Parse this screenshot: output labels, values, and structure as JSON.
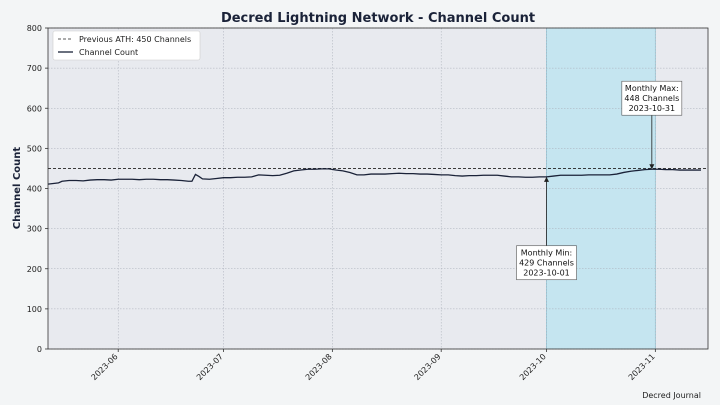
{
  "chart_data": {
    "type": "line",
    "title": "Decred Lightning Network - Channel Count",
    "ylabel": "Channel Count",
    "xlabel": "",
    "ylim": [
      0,
      800
    ],
    "yticks": [
      "0",
      "100",
      "200",
      "300",
      "400",
      "500",
      "600",
      "700",
      "800"
    ],
    "xlim": [
      "2023-05-12",
      "2023-11-16"
    ],
    "xticks": [
      {
        "date": "2023-06-01",
        "label": "2023-06"
      },
      {
        "date": "2023-07-01",
        "label": "2023-07"
      },
      {
        "date": "2023-08-01",
        "label": "2023-08"
      },
      {
        "date": "2023-09-01",
        "label": "2023-09"
      },
      {
        "date": "2023-10-01",
        "label": "2023-10"
      },
      {
        "date": "2023-11-01",
        "label": "2023-11"
      }
    ],
    "grid": true,
    "legend_position": "top-left",
    "highlight_range": [
      "2023-10-01",
      "2023-11-01"
    ],
    "reference_line": {
      "value": 450,
      "label": "Previous ATH: 450 Channels"
    },
    "series": [
      {
        "name": "Channel Count",
        "color": "#1a2238",
        "points": [
          [
            "2023-05-12",
            411
          ],
          [
            "2023-05-15",
            414
          ],
          [
            "2023-05-16",
            418
          ],
          [
            "2023-05-18",
            420
          ],
          [
            "2023-05-20",
            420
          ],
          [
            "2023-05-22",
            419
          ],
          [
            "2023-05-24",
            421
          ],
          [
            "2023-05-26",
            422
          ],
          [
            "2023-05-28",
            422
          ],
          [
            "2023-05-30",
            421
          ],
          [
            "2023-06-01",
            423
          ],
          [
            "2023-06-03",
            423
          ],
          [
            "2023-06-05",
            423
          ],
          [
            "2023-06-07",
            422
          ],
          [
            "2023-06-09",
            423
          ],
          [
            "2023-06-11",
            423
          ],
          [
            "2023-06-13",
            422
          ],
          [
            "2023-06-15",
            422
          ],
          [
            "2023-06-17",
            421
          ],
          [
            "2023-06-19",
            420
          ],
          [
            "2023-06-20",
            419
          ],
          [
            "2023-06-21",
            418
          ],
          [
            "2023-06-22",
            418
          ],
          [
            "2023-06-23",
            435
          ],
          [
            "2023-06-24",
            430
          ],
          [
            "2023-06-25",
            424
          ],
          [
            "2023-06-27",
            423
          ],
          [
            "2023-06-29",
            425
          ],
          [
            "2023-07-01",
            427
          ],
          [
            "2023-07-03",
            427
          ],
          [
            "2023-07-05",
            428
          ],
          [
            "2023-07-07",
            428
          ],
          [
            "2023-07-09",
            429
          ],
          [
            "2023-07-11",
            434
          ],
          [
            "2023-07-13",
            433
          ],
          [
            "2023-07-15",
            432
          ],
          [
            "2023-07-17",
            433
          ],
          [
            "2023-07-19",
            438
          ],
          [
            "2023-07-21",
            444
          ],
          [
            "2023-07-23",
            446
          ],
          [
            "2023-07-25",
            448
          ],
          [
            "2023-07-27",
            448
          ],
          [
            "2023-07-29",
            449
          ],
          [
            "2023-07-31",
            449
          ],
          [
            "2023-08-02",
            446
          ],
          [
            "2023-08-04",
            444
          ],
          [
            "2023-08-06",
            440
          ],
          [
            "2023-08-08",
            434
          ],
          [
            "2023-08-10",
            434
          ],
          [
            "2023-08-12",
            436
          ],
          [
            "2023-08-14",
            436
          ],
          [
            "2023-08-16",
            436
          ],
          [
            "2023-08-18",
            437
          ],
          [
            "2023-08-20",
            438
          ],
          [
            "2023-08-22",
            437
          ],
          [
            "2023-08-24",
            437
          ],
          [
            "2023-08-26",
            436
          ],
          [
            "2023-08-28",
            436
          ],
          [
            "2023-08-30",
            435
          ],
          [
            "2023-09-01",
            434
          ],
          [
            "2023-09-03",
            434
          ],
          [
            "2023-09-05",
            432
          ],
          [
            "2023-09-07",
            431
          ],
          [
            "2023-09-09",
            432
          ],
          [
            "2023-09-11",
            432
          ],
          [
            "2023-09-13",
            433
          ],
          [
            "2023-09-15",
            433
          ],
          [
            "2023-09-17",
            433
          ],
          [
            "2023-09-19",
            431
          ],
          [
            "2023-09-21",
            429
          ],
          [
            "2023-09-23",
            429
          ],
          [
            "2023-09-25",
            428
          ],
          [
            "2023-09-27",
            428
          ],
          [
            "2023-09-29",
            429
          ],
          [
            "2023-10-01",
            429
          ],
          [
            "2023-10-03",
            431
          ],
          [
            "2023-10-05",
            433
          ],
          [
            "2023-10-07",
            433
          ],
          [
            "2023-10-09",
            433
          ],
          [
            "2023-10-11",
            433
          ],
          [
            "2023-10-13",
            434
          ],
          [
            "2023-10-15",
            434
          ],
          [
            "2023-10-17",
            434
          ],
          [
            "2023-10-19",
            434
          ],
          [
            "2023-10-21",
            436
          ],
          [
            "2023-10-23",
            440
          ],
          [
            "2023-10-25",
            443
          ],
          [
            "2023-10-27",
            445
          ],
          [
            "2023-10-29",
            447
          ],
          [
            "2023-10-31",
            448
          ],
          [
            "2023-11-02",
            448
          ],
          [
            "2023-11-04",
            447
          ],
          [
            "2023-11-06",
            447
          ],
          [
            "2023-11-08",
            446
          ],
          [
            "2023-11-10",
            446
          ],
          [
            "2023-11-12",
            446
          ],
          [
            "2023-11-14",
            446
          ]
        ]
      }
    ],
    "annotations": [
      {
        "lines": [
          "Monthly Min:",
          "429 Channels",
          "2023-10-01"
        ],
        "date": "2023-10-01",
        "value": 429,
        "box_value": 215
      },
      {
        "lines": [
          "Monthly Max:",
          "448 Channels",
          "2023-10-31"
        ],
        "date": "2023-10-31",
        "value": 448,
        "box_value": 625
      }
    ],
    "footer": "Decred Journal"
  }
}
